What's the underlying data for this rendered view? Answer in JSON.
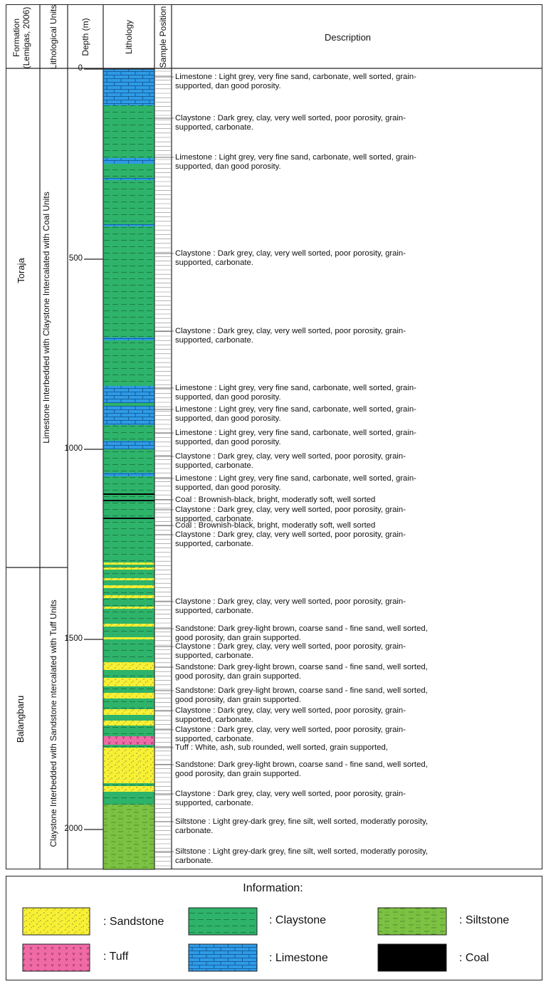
{
  "header": {
    "formation": "Formation\n(Lemigas, 2006)",
    "formation_line1": "Formation",
    "formation_line2": "(Lemigas, 2006)",
    "lithological_units": "Lithological Units",
    "depth": "Depth (m)",
    "lithology": "Lithology",
    "sample_position": "Sample Position",
    "description": "Description"
  },
  "formations": [
    {
      "name": "Toraja",
      "unit": "Limestone Interbedded with Claystone Intercalated with Coal Units"
    },
    {
      "name": "Balangbaru",
      "unit": "Claystone Interbedded with Sandstone ntercalated with Tuff Units"
    }
  ],
  "depth_ticks": [
    "0",
    "500",
    "1000",
    "1500",
    "2000"
  ],
  "descriptions": [
    "Limestone : Light grey, very fine sand, carbonate, well sorted, grain-\nsupported, dan good porosity.",
    "Claystone : Dark grey, clay, very well sorted, poor porosity, grain-\nsupported, carbonate.",
    "Limestone : Light grey, very fine sand, carbonate, well sorted, grain-\nsupported, dan good porosity.",
    "Claystone : Dark grey, clay, very well sorted, poor porosity, grain-\nsupported, carbonate.",
    "Claystone : Dark grey, clay, very well sorted, poor porosity, grain-\nsupported, carbonate.",
    "Limestone : Light grey, very fine sand, carbonate, well sorted, grain-\nsupported, dan good porosity.",
    "Limestone : Light grey, very fine sand, carbonate, well sorted, grain-\nsupported, dan good porosity.",
    "Limestone : Light grey, very fine sand, carbonate, well sorted, grain-\nsupported, dan good porosity.",
    "Claystone : Dark grey, clay, very well sorted, poor porosity, grain-\nsupported, carbonate.",
    "Limestone : Light grey, very fine sand, carbonate, well sorted, grain-\nsupported, dan good porosity.",
    "Coal : Brownish-black, bright, moderatly soft, well sorted",
    "Claystone : Dark grey, clay, very well sorted, poor porosity, grain-\nsupported, carbonate.",
    "Coal : Brownish-black, bright, moderatly soft, well sorted",
    "Claystone : Dark grey, clay, very well sorted, poor porosity, grain-\nsupported, carbonate.",
    "Claystone : Dark grey, clay, very well sorted, poor porosity, grain-\nsupported, carbonate.",
    "Sandstone: Dark grey-light brown, coarse sand - fine sand, well sorted,\ngood porosity, dan grain supported.",
    "Claystone : Dark grey, clay, very well sorted, poor porosity, grain-\nsupported, carbonate.",
    "Sandstone: Dark grey-light brown, coarse sand - fine sand, well sorted,\ngood porosity, dan grain supported.",
    "Sandstone: Dark grey-light brown, coarse sand - fine sand, well sorted,\ngood porosity, dan grain supported.",
    "Claystone : Dark grey, clay, very well sorted, poor porosity, grain-\nsupported, carbonate.",
    "Claystone : Dark grey, clay, very well sorted, poor porosity, grain-\nsupported, carbonate.",
    "Tuff : White, ash, sub rounded, well sorted, grain supported,",
    "Sandstone: Dark grey-light brown, coarse sand - fine sand, well sorted,\ngood porosity, dan grain supported.",
    "Claystone : Dark grey, clay, very well sorted, poor porosity, grain-\nsupported, carbonate.",
    "Siltstone : Light grey-dark grey, fine silt, well sorted, moderatly porosity,\ncarbonate.",
    "Siltstone : Light grey-dark grey, fine silt, well sorted, moderatly porosity,\ncarbonate."
  ],
  "legend": {
    "title": "Information:",
    "items": [
      {
        "key": "sandstone",
        "label": ": Sandstone"
      },
      {
        "key": "claystone",
        "label": ": Claystone"
      },
      {
        "key": "siltstone",
        "label": ": Siltstone"
      },
      {
        "key": "tuff",
        "label": ": Tuff"
      },
      {
        "key": "limestone",
        "label": ": Limestone"
      },
      {
        "key": "coal",
        "label": ": Coal"
      }
    ]
  },
  "colors": {
    "sandstone": "#f7f033",
    "claystone": "#2eb36a",
    "siltstone": "#7cc243",
    "tuff": "#f06aa6",
    "limestone": "#2f9be6",
    "coal": "#000000"
  }
}
